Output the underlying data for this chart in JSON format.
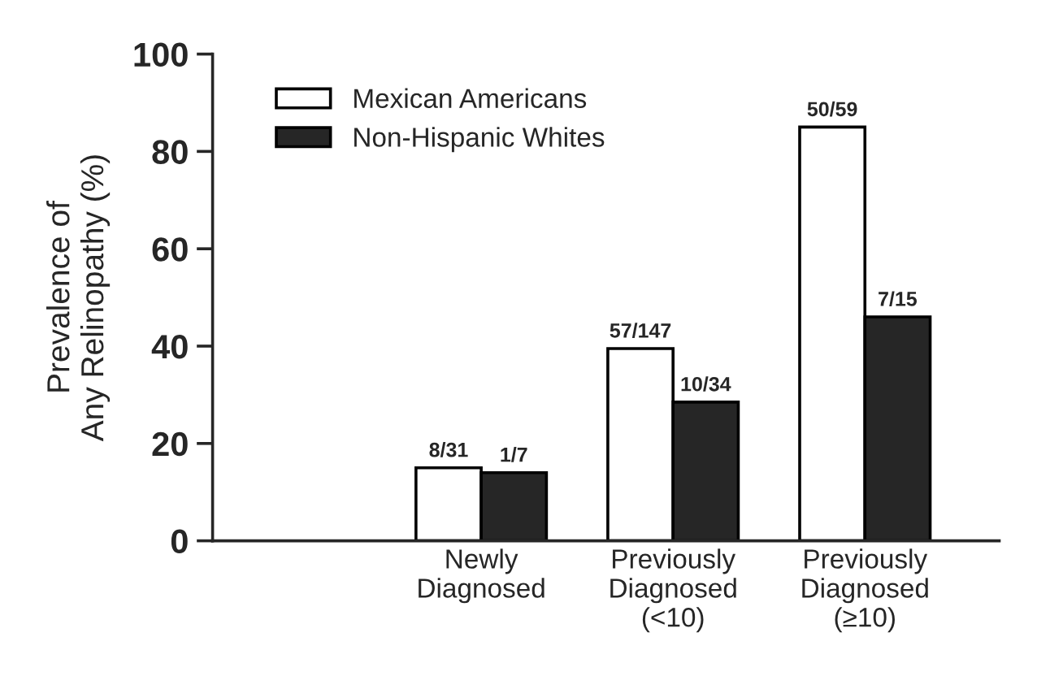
{
  "chart_data": {
    "type": "bar",
    "ylabel": "Prevalence of\nAny Relinopathy (%)",
    "categories": [
      "Newly\nDiagnosed",
      "Previously\nDiagnosed\n(<10)",
      "Previously\nDiagnosed\n(≥10)"
    ],
    "series": [
      {
        "name": "Mexican Americans",
        "color": "#ffffff",
        "values": [
          15,
          39.5,
          85
        ],
        "value_labels": [
          "8/31",
          "57/147",
          "50/59"
        ]
      },
      {
        "name": "Non-Hispanic Whites",
        "color": "#262626",
        "values": [
          14,
          28.5,
          46
        ],
        "value_labels": [
          "1/7",
          "10/34",
          "7/15"
        ]
      }
    ],
    "ylim": [
      0,
      100
    ],
    "yticks": [
      0,
      20,
      40,
      60,
      80,
      100
    ],
    "grid": false,
    "legend": "top left"
  }
}
